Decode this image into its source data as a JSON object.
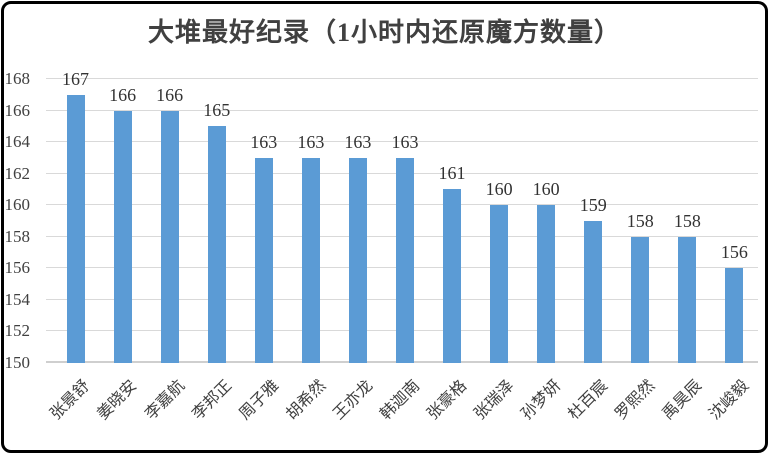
{
  "chart_data": {
    "type": "bar",
    "title": "大堆最好纪录（1小时内还原魔方数量）",
    "categories": [
      "张景舒",
      "姜晓安",
      "李嘉航",
      "李邦正",
      "周子雅",
      "胡希然",
      "王亦龙",
      "韩迦南",
      "张豪格",
      "张瑞泽",
      "孙梦妍",
      "杜百宸",
      "罗熙然",
      "禹昊辰",
      "沈峻毅"
    ],
    "values": [
      167,
      166,
      166,
      165,
      163,
      163,
      163,
      163,
      161,
      160,
      160,
      159,
      158,
      158,
      156
    ],
    "xlabel": "",
    "ylabel": "",
    "ylim": [
      150,
      168
    ],
    "ytick_step": 2,
    "ytick_labels": [
      "150",
      "152",
      "154",
      "156",
      "158",
      "160",
      "162",
      "164",
      "166",
      "168"
    ],
    "grid": "horizontal",
    "legend_position": "none",
    "bar_color": "#5b9bd5",
    "gridline_color": "#d9d9d9",
    "text_color": "#404040",
    "border_color": "#000000"
  }
}
